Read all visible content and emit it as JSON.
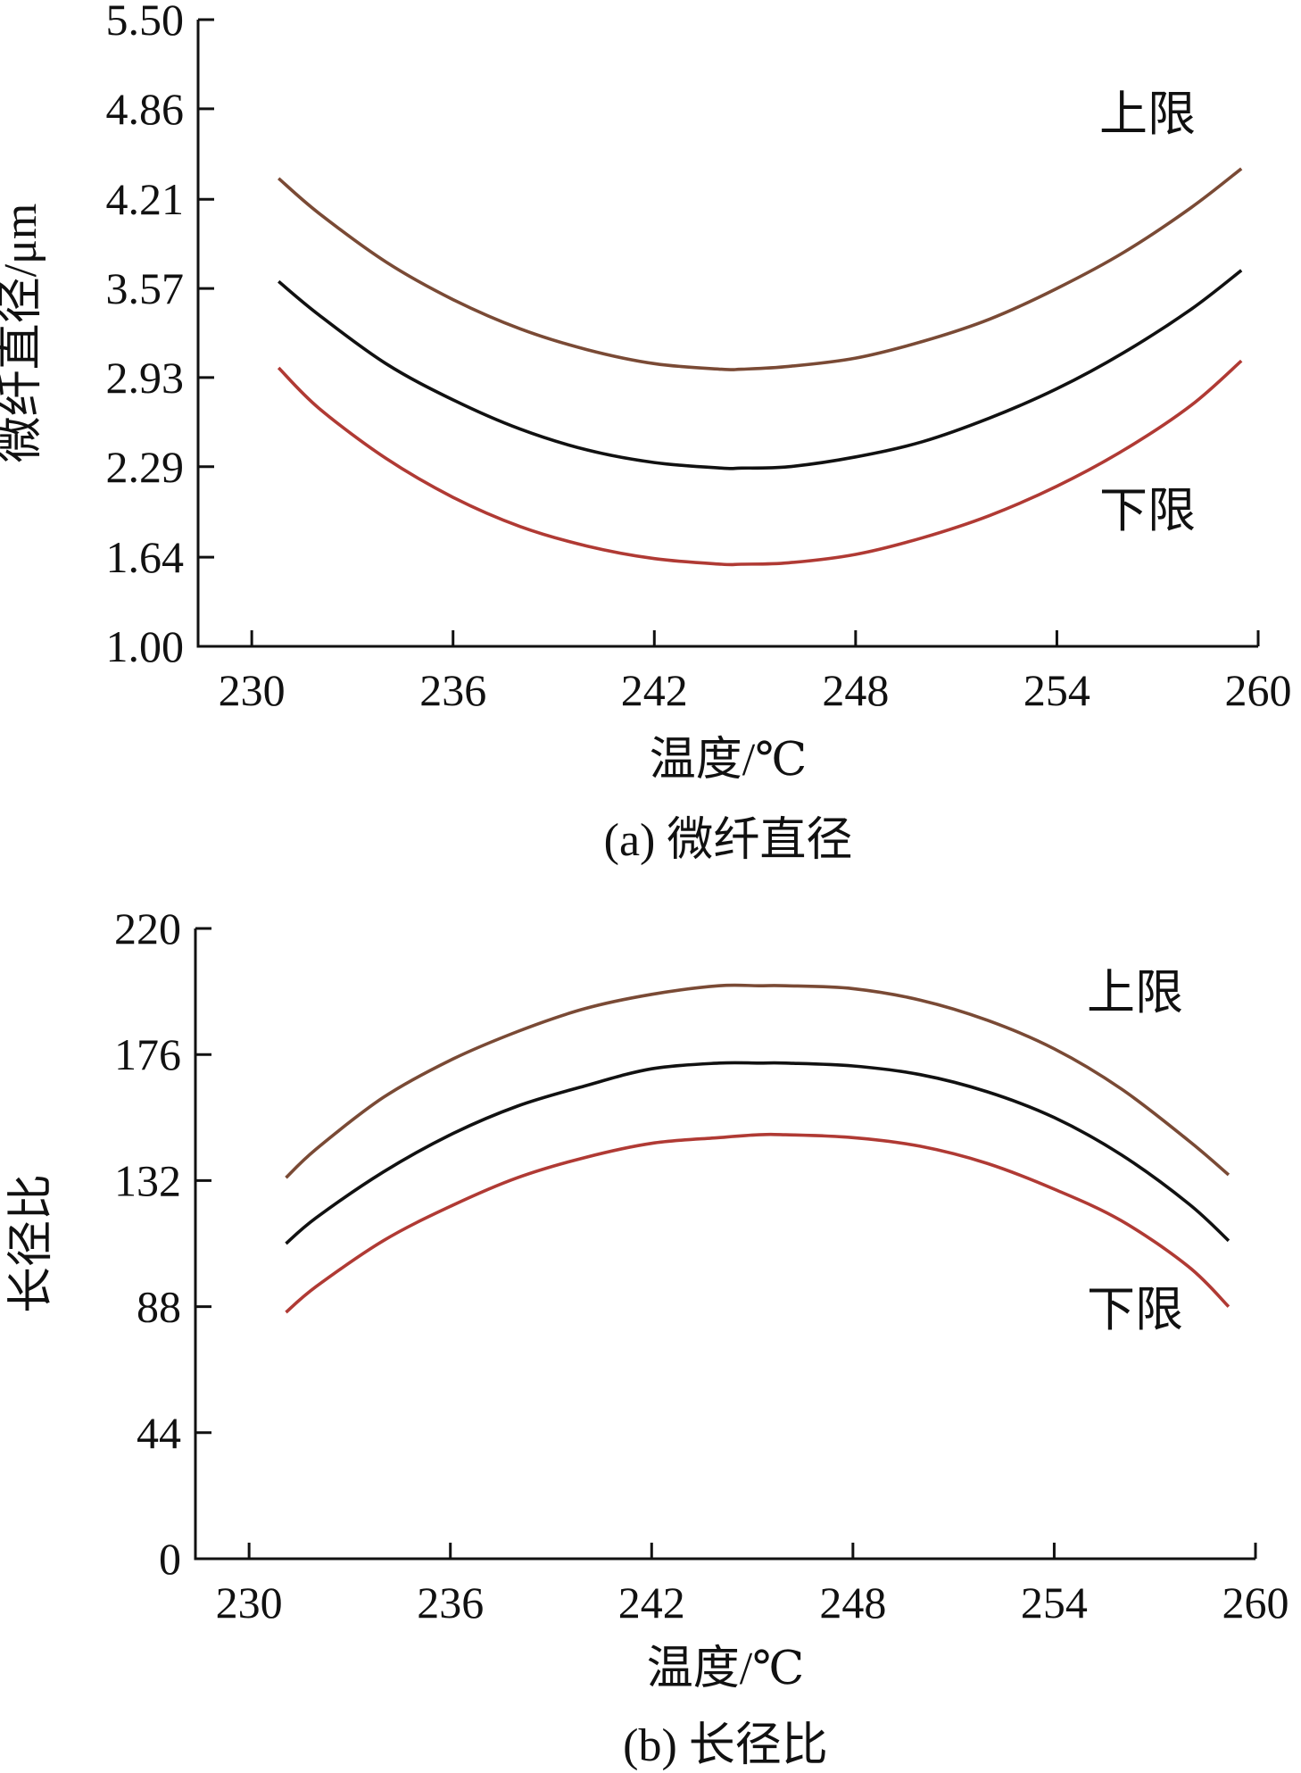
{
  "chart_data": [
    {
      "type": "line",
      "xlabel": "温度/℃",
      "ylabel": "微纤直径/μm",
      "caption": "(a) 微纤直径",
      "xlim": [
        228.4,
        260
      ],
      "ylim": [
        1.0,
        5.5
      ],
      "xticks": [
        "230",
        "236",
        "242",
        "248",
        "254",
        "260"
      ],
      "yticks": [
        "1.00",
        "1.64",
        "2.29",
        "2.93",
        "3.57",
        "4.21",
        "4.86",
        "5.50"
      ],
      "grid": false,
      "series": [
        {
          "name": "上限",
          "color": "#7a4a35",
          "x": [
            230.8,
            232,
            234,
            236,
            238,
            240,
            242,
            244,
            244.6,
            246,
            248,
            250,
            252,
            254,
            256,
            258,
            259.5
          ],
          "y": [
            4.36,
            4.11,
            3.76,
            3.49,
            3.28,
            3.13,
            3.03,
            2.99,
            2.99,
            3.01,
            3.07,
            3.19,
            3.35,
            3.57,
            3.83,
            4.15,
            4.43
          ]
        },
        {
          "name": "",
          "color": "#111111",
          "x": [
            230.8,
            232,
            234,
            236,
            238,
            240,
            242,
            244,
            244.6,
            246,
            248,
            250,
            252,
            254,
            256,
            258,
            259.5
          ],
          "y": [
            3.62,
            3.38,
            3.03,
            2.77,
            2.56,
            2.41,
            2.32,
            2.28,
            2.28,
            2.29,
            2.36,
            2.47,
            2.64,
            2.85,
            3.11,
            3.42,
            3.7
          ]
        },
        {
          "name": "下限",
          "color": "#b03a34",
          "x": [
            230.8,
            232,
            234,
            236,
            238,
            240,
            242,
            244,
            244.6,
            246,
            248,
            250,
            252,
            254,
            256,
            258,
            259.5
          ],
          "y": [
            3.0,
            2.71,
            2.35,
            2.07,
            1.86,
            1.72,
            1.63,
            1.59,
            1.59,
            1.6,
            1.66,
            1.78,
            1.94,
            2.15,
            2.41,
            2.73,
            3.05
          ]
        }
      ]
    },
    {
      "type": "line",
      "xlabel": "温度/℃",
      "ylabel": "长径比",
      "caption": "(b) 长径比",
      "xlim": [
        228.4,
        260
      ],
      "ylim": [
        0,
        220
      ],
      "xticks": [
        "230",
        "236",
        "242",
        "248",
        "254",
        "260"
      ],
      "yticks": [
        "0",
        "44",
        "88",
        "132",
        "176",
        "220"
      ],
      "grid": false,
      "series": [
        {
          "name": "上限",
          "color": "#7a4a35",
          "x": [
            231.1,
            232,
            234,
            236,
            238,
            240,
            242,
            244,
            245.2,
            246,
            248,
            250,
            252,
            254,
            256,
            258,
            259.2
          ],
          "y": [
            133,
            143,
            161,
            174,
            184,
            192,
            197,
            200,
            200,
            200,
            199,
            195,
            188,
            178,
            164,
            146,
            134
          ]
        },
        {
          "name": "",
          "color": "#111111",
          "x": [
            231.1,
            232,
            234,
            236,
            238,
            240,
            242,
            244,
            245.2,
            246,
            248,
            250,
            252,
            254,
            256,
            258,
            259.2
          ],
          "y": [
            110,
            119,
            135,
            148,
            158,
            165,
            171,
            173,
            173,
            173,
            172,
            169,
            163,
            154,
            141,
            124,
            111
          ]
        },
        {
          "name": "下限",
          "color": "#b03a34",
          "x": [
            231.1,
            232,
            234,
            236,
            238,
            240,
            242,
            244,
            245.2,
            246,
            248,
            250,
            252,
            254,
            256,
            258,
            259.2
          ],
          "y": [
            86,
            95,
            111,
            123,
            133,
            140,
            145,
            147,
            148,
            148,
            147,
            144,
            138,
            129,
            118,
            102,
            88
          ]
        }
      ]
    }
  ]
}
